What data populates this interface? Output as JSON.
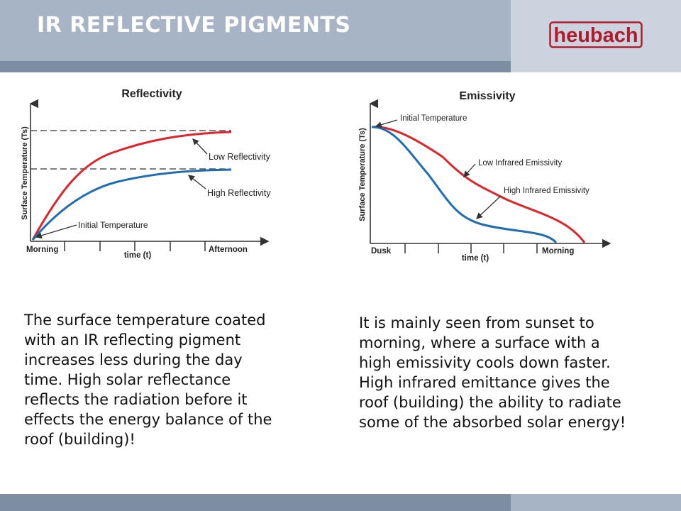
{
  "header": {
    "title": "IR REFLECTIVE PIGMENTS",
    "logo_text": "heubach",
    "logo_color": "#b01c2e"
  },
  "colors": {
    "low_curve": "#e0242c",
    "high_curve": "#1f6eb5"
  },
  "chart_data": [
    {
      "type": "line",
      "title": "Reflectivity",
      "ylabel": "Surface Temperature (Ts)",
      "xlabel": "time (t)",
      "x_start_label": "Morning",
      "x_end_label": "Afternoon",
      "initial_label": "Initial Temperature",
      "series": [
        {
          "name": "Low Reflectivity",
          "label": "Low Reflectivity"
        },
        {
          "name": "High Reflectivity",
          "label": "High Reflectivity"
        }
      ]
    },
    {
      "type": "line",
      "title": "Emissivity",
      "ylabel": "Surface Temperature (Ts)",
      "xlabel": "time (t)",
      "x_start_label": "Dusk",
      "x_end_label": "Morning",
      "initial_label": "Initial Temperature",
      "series": [
        {
          "name": "Low Infrared Emissivity",
          "label": "Low Infrared Emissivity"
        },
        {
          "name": "High Infrared Emissivity",
          "label": "High Infrared Emissivity"
        }
      ]
    }
  ],
  "text": {
    "left_lines": [
      "The surface temperature coated",
      "with an IR reflecting pigment",
      "increases less during the day",
      "time. High solar reflectance",
      "reflects the radiation before it",
      "effects the energy balance of the",
      "roof (building)!"
    ],
    "right_lines": [
      "It is mainly seen from sunset to",
      "morning, where a surface with a",
      "high emissivity cools down faster.",
      "High infrared emittance gives the",
      "roof (building) the ability to radiate",
      "some of the absorbed solar energy!"
    ]
  }
}
